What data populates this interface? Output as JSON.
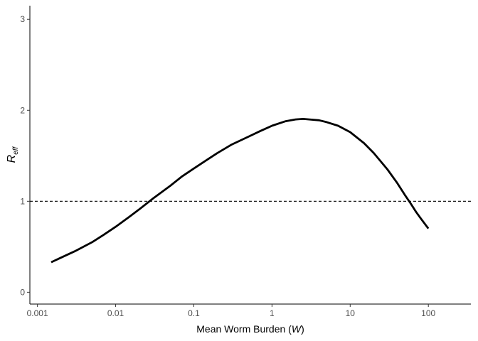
{
  "chart_data": {
    "type": "line",
    "title": "",
    "xlabel": "Mean Worm Burden (",
    "xlabel_var": "W",
    "xlabel_close": ")",
    "ylabel": "R",
    "ylabel_sub": "eff",
    "x_scale": "log10",
    "xlim": [
      0.0008,
      350
    ],
    "ylim": [
      -0.13,
      3.15
    ],
    "x_ticks": [
      0.001,
      0.01,
      0.1,
      1,
      10,
      100
    ],
    "x_tick_labels": [
      "0.001",
      "0.01",
      "0.1",
      "1",
      "10",
      "100"
    ],
    "y_ticks": [
      0,
      1,
      2,
      3
    ],
    "y_tick_labels": [
      "0",
      "1",
      "2",
      "3"
    ],
    "reference_line": {
      "y": 1,
      "style": "dashed"
    },
    "grid": false,
    "series": [
      {
        "color": "#000000",
        "x": [
          0.0015,
          0.002,
          0.003,
          0.005,
          0.007,
          0.01,
          0.015,
          0.02,
          0.03,
          0.05,
          0.07,
          0.1,
          0.15,
          0.2,
          0.3,
          0.5,
          0.7,
          1,
          1.5,
          2,
          2.5,
          3,
          4,
          5,
          7,
          10,
          15,
          20,
          30,
          40,
          50,
          60,
          70,
          80,
          100
        ],
        "y": [
          0.33,
          0.38,
          0.45,
          0.55,
          0.63,
          0.72,
          0.83,
          0.91,
          1.03,
          1.17,
          1.27,
          1.36,
          1.46,
          1.53,
          1.62,
          1.71,
          1.77,
          1.83,
          1.88,
          1.9,
          1.905,
          1.9,
          1.89,
          1.87,
          1.83,
          1.76,
          1.64,
          1.53,
          1.35,
          1.2,
          1.07,
          0.97,
          0.88,
          0.81,
          0.7
        ]
      }
    ]
  }
}
